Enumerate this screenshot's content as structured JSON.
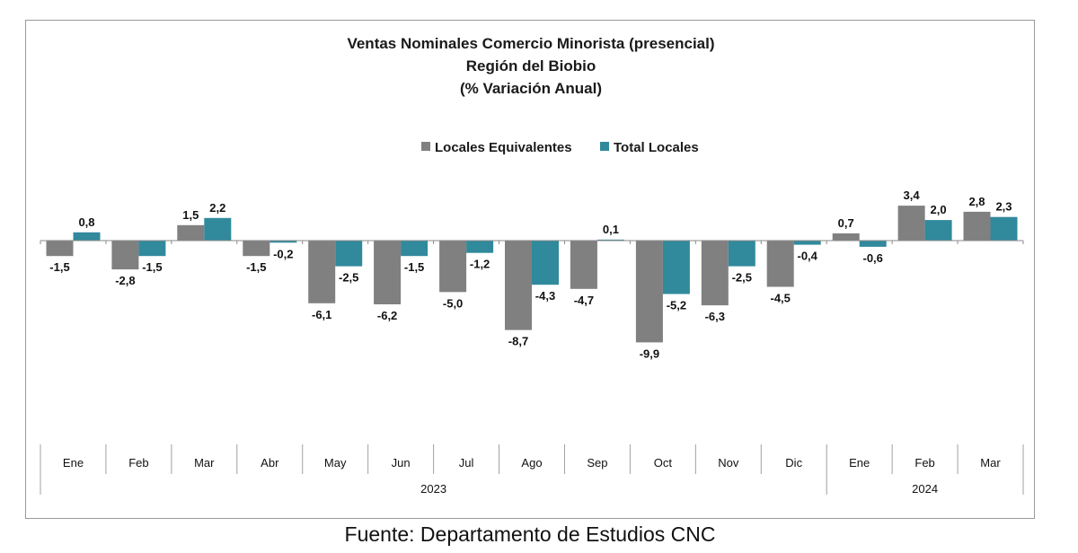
{
  "chart_data": {
    "type": "bar",
    "title": [
      "Ventas Nominales Comercio Minorista (presencial)",
      "Región del Biobio",
      "(% Variación Anual)"
    ],
    "categories": [
      "Ene",
      "Feb",
      "Mar",
      "Abr",
      "May",
      "Jun",
      "Jul",
      "Ago",
      "Sep",
      "Oct",
      "Nov",
      "Dic",
      "Ene",
      "Feb",
      "Mar"
    ],
    "years": [
      {
        "label": "2023",
        "start": 0,
        "end": 11
      },
      {
        "label": "2024",
        "start": 12,
        "end": 14
      }
    ],
    "series": [
      {
        "name": "Locales Equivalentes",
        "color": "#808080",
        "values": [
          -1.5,
          -2.8,
          1.5,
          -1.5,
          -6.1,
          -6.2,
          -5.0,
          -8.7,
          -4.7,
          -9.9,
          -6.3,
          -4.5,
          0.7,
          3.4,
          2.8
        ],
        "labels": [
          "-1,5",
          "-2,8",
          "1,5",
          "-1,5",
          "-6,1",
          "-6,2",
          "-5,0",
          "-8,7",
          "-4,7",
          "-9,9",
          "-6,3",
          "-4,5",
          "0,7",
          "3,4",
          "2,8"
        ]
      },
      {
        "name": "Total Locales",
        "color": "#31899c",
        "values": [
          0.8,
          -1.5,
          2.2,
          -0.2,
          -2.5,
          -1.5,
          -1.2,
          -4.3,
          0.1,
          -5.2,
          -2.5,
          -0.4,
          -0.6,
          2.0,
          2.3
        ],
        "labels": [
          "0,8",
          "-1,5",
          "2,2",
          "-0,2",
          "-2,5",
          "-1,5",
          "-1,2",
          "-4,3",
          "0,1",
          "-5,2",
          "-2,5",
          "-0,4",
          "-0,6",
          "2,0",
          "2,3"
        ]
      }
    ],
    "legend_position": "top-center",
    "grid": false,
    "ylim": [
      -10,
      4
    ]
  },
  "source": "Fuente: Departamento de Estudios CNC"
}
